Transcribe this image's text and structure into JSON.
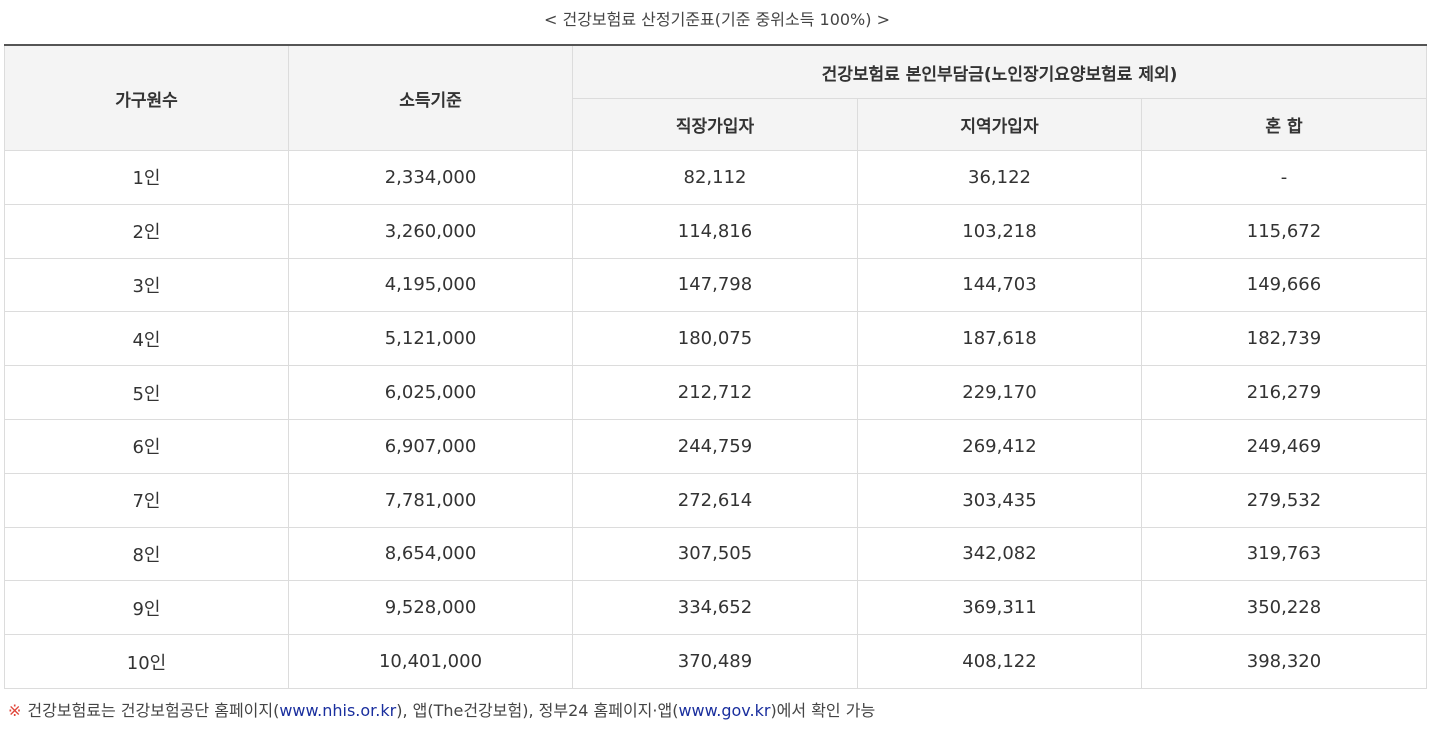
{
  "caption": "< 건강보험료 산정기준표(기준 중위소득 100%) >",
  "table": {
    "headers": {
      "household": "가구원수",
      "income": "소득기준",
      "premium_group": "건강보험료 본인부담금(노인장기요양보험료 제외)",
      "employee": "직장가입자",
      "regional": "지역가입자",
      "mixed": "혼 합"
    },
    "rows": [
      {
        "household": "1인",
        "income": "2,334,000",
        "employee": "82,112",
        "regional": "36,122",
        "mixed": "-"
      },
      {
        "household": "2인",
        "income": "3,260,000",
        "employee": "114,816",
        "regional": "103,218",
        "mixed": "115,672"
      },
      {
        "household": "3인",
        "income": "4,195,000",
        "employee": "147,798",
        "regional": "144,703",
        "mixed": "149,666"
      },
      {
        "household": "4인",
        "income": "5,121,000",
        "employee": "180,075",
        "regional": "187,618",
        "mixed": "182,739"
      },
      {
        "household": "5인",
        "income": "6,025,000",
        "employee": "212,712",
        "regional": "229,170",
        "mixed": "216,279"
      },
      {
        "household": "6인",
        "income": "6,907,000",
        "employee": "244,759",
        "regional": "269,412",
        "mixed": "249,469"
      },
      {
        "household": "7인",
        "income": "7,781,000",
        "employee": "272,614",
        "regional": "303,435",
        "mixed": "279,532"
      },
      {
        "household": "8인",
        "income": "8,654,000",
        "employee": "307,505",
        "regional": "342,082",
        "mixed": "319,763"
      },
      {
        "household": "9인",
        "income": "9,528,000",
        "employee": "334,652",
        "regional": "369,311",
        "mixed": "350,228"
      },
      {
        "household": "10인",
        "income": "10,401,000",
        "employee": "370,489",
        "regional": "408,122",
        "mixed": "398,320"
      }
    ]
  },
  "note": {
    "mark": "※",
    "text1": "건강보험료는 건강보험공단 홈페이지(",
    "link1": "www.nhis.or.kr",
    "text2": "), 앱(The건강보험), 정부24 홈페이지·앱(",
    "link2": "www.gov.kr",
    "text3": ")에서 확인 가능"
  },
  "colors": {
    "note_mark": "#e0463a",
    "link": "#1a2f9e",
    "header_bg": "#f4f4f4",
    "border": "#dcdcdc"
  }
}
